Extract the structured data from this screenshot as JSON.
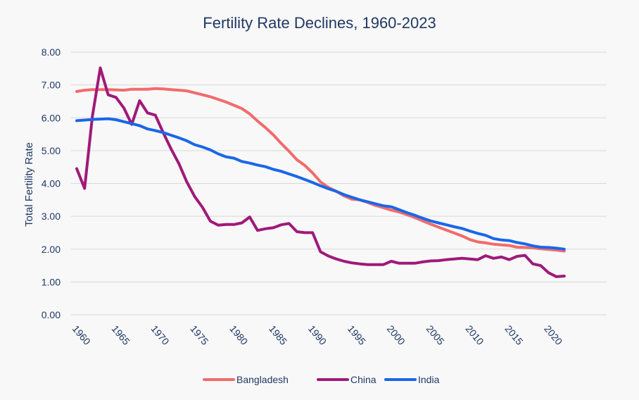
{
  "chart_data": {
    "type": "line",
    "title": "Fertility Rate Declines, 1960-2023",
    "xlabel": "",
    "ylabel": "Total Fertility Rate",
    "xlim": [
      1960,
      2023
    ],
    "ylim": [
      0,
      8
    ],
    "y_ticks": [
      "0.00",
      "1.00",
      "2.00",
      "3.00",
      "4.00",
      "5.00",
      "6.00",
      "7.00",
      "8.00"
    ],
    "x_ticks": [
      "1960",
      "1965",
      "1970",
      "1975",
      "1980",
      "1985",
      "1990",
      "1995",
      "2000",
      "2005",
      "2010",
      "2015",
      "2020"
    ],
    "grid": "horizontal",
    "legend_position": "bottom",
    "x": [
      1960,
      1961,
      1962,
      1963,
      1964,
      1965,
      1966,
      1967,
      1968,
      1969,
      1970,
      1971,
      1972,
      1973,
      1974,
      1975,
      1976,
      1977,
      1978,
      1979,
      1980,
      1981,
      1982,
      1983,
      1984,
      1985,
      1986,
      1987,
      1988,
      1989,
      1990,
      1991,
      1992,
      1993,
      1994,
      1995,
      1996,
      1997,
      1998,
      1999,
      2000,
      2001,
      2002,
      2003,
      2004,
      2005,
      2006,
      2007,
      2008,
      2009,
      2010,
      2011,
      2012,
      2013,
      2014,
      2015,
      2016,
      2017,
      2018,
      2019,
      2020,
      2021,
      2022
    ],
    "series": [
      {
        "name": "Bangladesh",
        "color": "#f26b6b",
        "values": [
          6.8,
          6.84,
          6.86,
          6.86,
          6.86,
          6.85,
          6.84,
          6.87,
          6.87,
          6.87,
          6.89,
          6.88,
          6.86,
          6.84,
          6.82,
          6.76,
          6.7,
          6.64,
          6.56,
          6.48,
          6.38,
          6.28,
          6.12,
          5.9,
          5.7,
          5.48,
          5.22,
          4.98,
          4.72,
          4.55,
          4.32,
          4.05,
          3.88,
          3.76,
          3.62,
          3.52,
          3.5,
          3.42,
          3.33,
          3.26,
          3.19,
          3.13,
          3.05,
          2.96,
          2.86,
          2.76,
          2.67,
          2.58,
          2.49,
          2.4,
          2.29,
          2.22,
          2.19,
          2.15,
          2.13,
          2.11,
          2.06,
          2.05,
          2.04,
          2.01,
          1.99,
          1.97,
          1.94
        ]
      },
      {
        "name": "China",
        "color": "#a0197a",
        "values": [
          4.45,
          3.85,
          6.05,
          7.52,
          6.7,
          6.62,
          6.3,
          5.8,
          6.52,
          6.15,
          6.08,
          5.55,
          5.05,
          4.6,
          4.05,
          3.6,
          3.27,
          2.85,
          2.73,
          2.75,
          2.75,
          2.8,
          2.98,
          2.57,
          2.62,
          2.65,
          2.74,
          2.78,
          2.53,
          2.5,
          2.5,
          1.92,
          1.79,
          1.7,
          1.63,
          1.58,
          1.55,
          1.53,
          1.53,
          1.53,
          1.63,
          1.57,
          1.57,
          1.57,
          1.61,
          1.64,
          1.65,
          1.68,
          1.7,
          1.72,
          1.7,
          1.68,
          1.8,
          1.72,
          1.76,
          1.68,
          1.78,
          1.81,
          1.55,
          1.5,
          1.28,
          1.16,
          1.18
        ]
      },
      {
        "name": "India",
        "color": "#1a67e8",
        "values": [
          5.91,
          5.93,
          5.95,
          5.96,
          5.97,
          5.94,
          5.88,
          5.82,
          5.76,
          5.66,
          5.61,
          5.55,
          5.47,
          5.39,
          5.3,
          5.18,
          5.11,
          5.02,
          4.9,
          4.81,
          4.77,
          4.67,
          4.62,
          4.56,
          4.51,
          4.43,
          4.37,
          4.29,
          4.21,
          4.12,
          4.03,
          3.93,
          3.84,
          3.76,
          3.66,
          3.58,
          3.5,
          3.44,
          3.38,
          3.32,
          3.29,
          3.2,
          3.11,
          3.03,
          2.94,
          2.86,
          2.8,
          2.74,
          2.68,
          2.63,
          2.55,
          2.48,
          2.42,
          2.32,
          2.28,
          2.26,
          2.2,
          2.16,
          2.1,
          2.06,
          2.05,
          2.03,
          2.0
        ]
      }
    ]
  }
}
